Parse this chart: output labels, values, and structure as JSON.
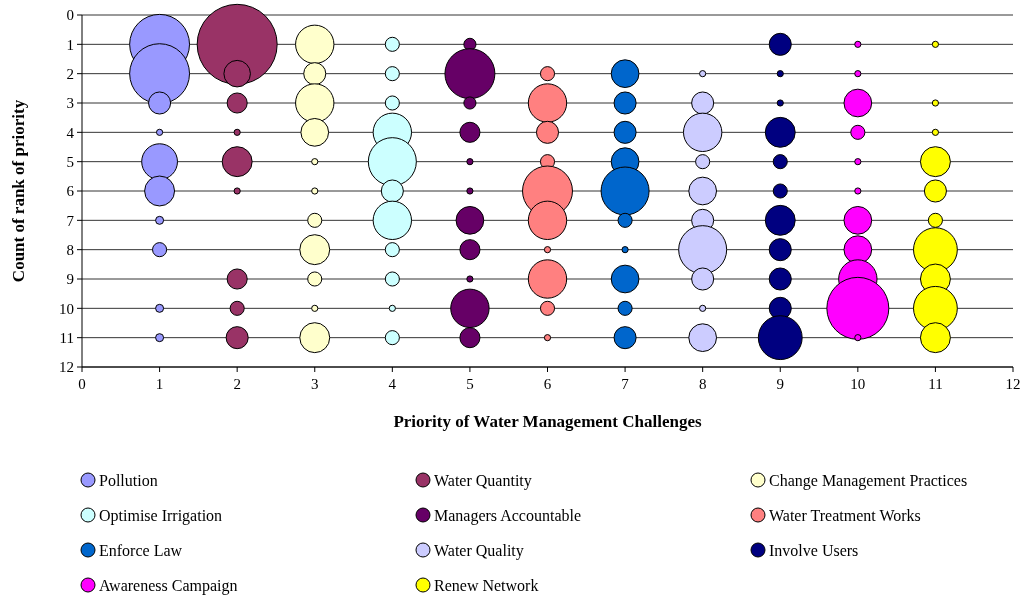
{
  "chart_data": {
    "type": "bubble",
    "xlabel": "Priority of Water Management Challenges",
    "ylabel": "Count of rank of priority",
    "xlim": [
      0,
      12
    ],
    "xticks": [
      0,
      1,
      2,
      3,
      4,
      5,
      6,
      7,
      8,
      9,
      10,
      11,
      12
    ],
    "ylim": [
      12,
      0
    ],
    "yticks": [
      0,
      1,
      2,
      3,
      4,
      5,
      6,
      7,
      8,
      9,
      10,
      11,
      12
    ],
    "grid": "y",
    "legend": "bottom",
    "series": [
      {
        "name": "Pollution",
        "color": "#9999ff",
        "x": [
          1,
          1,
          1,
          1,
          1,
          1,
          1,
          1,
          1,
          1
        ],
        "values": [
          1,
          2,
          3,
          4,
          5,
          6,
          7,
          8,
          10,
          11
        ],
        "sizes": [
          0.56,
          0.56,
          0.076,
          0.006,
          0.2,
          0.14,
          0.01,
          0.031,
          0.01,
          0.01
        ]
      },
      {
        "name": "Water Quantity",
        "color": "#993366",
        "x": [
          2,
          2,
          2,
          2,
          2,
          2,
          2,
          2,
          2
        ],
        "values": [
          1,
          2,
          3,
          4,
          5,
          6,
          9,
          10,
          11
        ],
        "sizes": [
          1,
          0.11,
          0.063,
          0.006,
          0.14,
          0.006,
          0.063,
          0.031,
          0.076
        ]
      },
      {
        "name": "Change Management Practices",
        "color": "#ffffcc",
        "x": [
          3,
          3,
          3,
          3,
          3,
          3,
          3,
          3,
          3,
          3,
          3
        ],
        "values": [
          1,
          2,
          3,
          4,
          5,
          6,
          7,
          8,
          9,
          10,
          11
        ],
        "sizes": [
          0.23,
          0.076,
          0.23,
          0.12,
          0.006,
          0.006,
          0.031,
          0.14,
          0.031,
          0.006,
          0.14
        ]
      },
      {
        "name": "Optimise Irrigation",
        "color": "#ccffff",
        "x": [
          4,
          4,
          4,
          4,
          4,
          4,
          4,
          4,
          4,
          4,
          4
        ],
        "values": [
          1,
          2,
          3,
          4,
          5,
          6,
          7,
          8,
          9,
          10,
          11
        ],
        "sizes": [
          0.031,
          0.031,
          0.031,
          0.23,
          0.36,
          0.076,
          0.23,
          0.031,
          0.031,
          0.006,
          0.031
        ]
      },
      {
        "name": "Managers Accountable",
        "color": "#660066",
        "x": [
          5,
          5,
          5,
          5,
          5,
          5,
          5,
          5,
          5,
          5,
          5
        ],
        "values": [
          1,
          2,
          3,
          4,
          5,
          6,
          7,
          8,
          9,
          10,
          11
        ],
        "sizes": [
          0.023,
          0.39,
          0.023,
          0.063,
          0.006,
          0.006,
          0.12,
          0.063,
          0.006,
          0.23,
          0.063
        ]
      },
      {
        "name": "Water Treatment Works",
        "color": "#ff8080",
        "x": [
          6,
          6,
          6,
          6,
          6,
          6,
          6,
          6,
          6,
          6
        ],
        "values": [
          2,
          3,
          4,
          5,
          6,
          7,
          8,
          9,
          10,
          11
        ],
        "sizes": [
          0.031,
          0.23,
          0.076,
          0.031,
          0.39,
          0.23,
          0.006,
          0.23,
          0.031,
          0.006
        ]
      },
      {
        "name": "Enforce Law",
        "color": "#0066cc",
        "x": [
          7,
          7,
          7,
          7,
          7,
          7,
          7,
          7,
          7,
          7
        ],
        "values": [
          2,
          3,
          4,
          5,
          6,
          7,
          8,
          9,
          10,
          11
        ],
        "sizes": [
          0.12,
          0.076,
          0.076,
          0.12,
          0.36,
          0.031,
          0.006,
          0.12,
          0.031,
          0.076
        ]
      },
      {
        "name": "Water Quality",
        "color": "#ccccff",
        "x": [
          8,
          8,
          8,
          8,
          8,
          8,
          8,
          8,
          8,
          8
        ],
        "values": [
          2,
          3,
          4,
          5,
          6,
          7,
          8,
          9,
          10,
          11
        ],
        "sizes": [
          0.006,
          0.076,
          0.23,
          0.031,
          0.12,
          0.076,
          0.36,
          0.076,
          0.006,
          0.12
        ]
      },
      {
        "name": "Involve Users",
        "color": "#000080",
        "x": [
          9,
          9,
          9,
          9,
          9,
          9,
          9,
          9,
          9,
          9,
          9
        ],
        "values": [
          1,
          2,
          3,
          4,
          5,
          6,
          7,
          8,
          9,
          10,
          11
        ],
        "sizes": [
          0.076,
          0.006,
          0.006,
          0.14,
          0.031,
          0.031,
          0.14,
          0.076,
          0.076,
          0.076,
          0.3
        ]
      },
      {
        "name": "Awareness Campaign",
        "color": "#ff00ff",
        "x": [
          10,
          10,
          10,
          10,
          10,
          10,
          10,
          10,
          10,
          10,
          10
        ],
        "values": [
          1,
          2,
          3,
          4,
          5,
          6,
          7,
          8,
          9,
          10,
          11
        ],
        "sizes": [
          0.006,
          0.006,
          0.12,
          0.031,
          0.006,
          0.006,
          0.12,
          0.12,
          0.23,
          0.6,
          0.006
        ]
      },
      {
        "name": "Renew Network",
        "color": "#ffff00",
        "x": [
          11,
          11,
          11,
          11,
          11,
          11,
          11,
          11,
          11,
          11
        ],
        "values": [
          1,
          3,
          4,
          5,
          6,
          7,
          8,
          9,
          10,
          11
        ],
        "sizes": [
          0.006,
          0.006,
          0.006,
          0.14,
          0.076,
          0.031,
          0.3,
          0.14,
          0.3,
          0.14
        ]
      }
    ]
  }
}
